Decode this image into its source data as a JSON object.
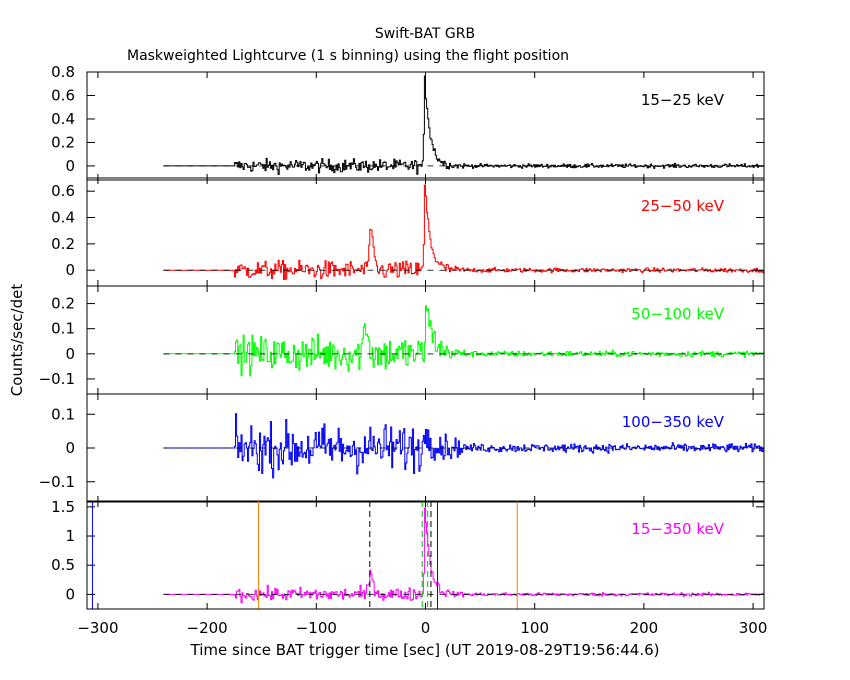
{
  "title": "Swift-BAT GRB",
  "subtitle": "Maskweighted Lightcurve (1 s binning) using the flight position",
  "xlabel": "Time since BAT trigger time [sec] (UT 2019-08-29T19:56:44.6)",
  "ylabel": "Counts/sec/det",
  "chart_data": {
    "type": "line",
    "title": "Swift-BAT GRB",
    "subtitle": "Maskweighted Lightcurve (1 s binning) using the flight position",
    "xlabel": "Time since BAT trigger time [sec] (UT 2019-08-29T19:56:44.6)",
    "ylabel": "Counts/sec/det",
    "xlim": [
      -310,
      310
    ],
    "xticks": [
      -300,
      -200,
      -100,
      0,
      100,
      200,
      300
    ],
    "xtick_labels": [
      "−300",
      "−200",
      "−100",
      "0",
      "100",
      "200",
      "300"
    ],
    "panels": [
      {
        "label": "15−25 keV",
        "color": "#000000",
        "ylim": [
          -0.12,
          0.8
        ],
        "yticks": [
          0,
          0.2,
          0.4,
          0.6,
          0.8
        ],
        "ytick_labels": [
          "0",
          "0.2",
          "0.4",
          "0.6",
          "0.8"
        ],
        "flat_start": -240,
        "data_start": -175,
        "noise_pre": 0.04,
        "noise_post": 0.012,
        "peak": 0.75,
        "peak_x": -1,
        "decay": 5,
        "bumps": []
      },
      {
        "label": "25−50 keV",
        "color": "#ff0000",
        "ylim": [
          -0.12,
          0.7
        ],
        "yticks": [
          0,
          0.2,
          0.4,
          0.6
        ],
        "ytick_labels": [
          "0",
          "0.2",
          "0.4",
          "0.6"
        ],
        "flat_start": -240,
        "data_start": -175,
        "noise_pre": 0.05,
        "noise_post": 0.012,
        "peak": 0.65,
        "peak_x": -1,
        "decay": 5,
        "bumps": [
          {
            "x": -50,
            "h": 0.25
          }
        ]
      },
      {
        "label": "50−100 keV",
        "color": "#00ff00",
        "ylim": [
          -0.16,
          0.27
        ],
        "yticks": [
          -0.1,
          0,
          0.1,
          0.2
        ],
        "ytick_labels": [
          "−0.1",
          "0",
          "0.1",
          "0.2"
        ],
        "flat_start": -240,
        "data_start": -175,
        "noise_pre": 0.05,
        "noise_post": 0.008,
        "peak": 0.2,
        "peak_x": 0,
        "decay": 6,
        "bumps": [
          {
            "x": -55,
            "h": 0.12
          }
        ]
      },
      {
        "label": "100−350 keV",
        "color": "#0000ff",
        "ylim": [
          -0.16,
          0.16
        ],
        "yticks": [
          -0.1,
          0,
          0.1
        ],
        "ytick_labels": [
          "−0.1",
          "0",
          "0.1"
        ],
        "flat_start": -240,
        "data_start": -175,
        "noise_pre": 0.05,
        "noise_post": 0.009,
        "peak": 0.06,
        "peak_x": 0,
        "decay": 6,
        "bumps": []
      },
      {
        "label": "15−350 keV",
        "color": "#ff00ff",
        "ylim": [
          -0.25,
          1.6
        ],
        "yticks": [
          0,
          0.5,
          1,
          1.5
        ],
        "ytick_labels": [
          "0",
          "0.5",
          "1",
          "1.5"
        ],
        "flat_start": -240,
        "data_start": -175,
        "noise_pre": 0.08,
        "noise_post": 0.02,
        "peak": 1.5,
        "peak_x": -1,
        "decay": 5,
        "bumps": [
          {
            "x": -50,
            "h": 0.35
          }
        ]
      }
    ],
    "markers": [
      {
        "x": -153,
        "color": "#ff8000",
        "style": "solid"
      },
      {
        "x": 84,
        "color": "#ff8000",
        "style": "solid"
      },
      {
        "x": -51,
        "color": "#000000",
        "style": "dashed"
      },
      {
        "x": 5,
        "color": "#000000",
        "style": "dashed"
      },
      {
        "x": -3,
        "color": "#00c000",
        "style": "dashed"
      },
      {
        "x": 2,
        "color": "#00c000",
        "style": "dashed"
      },
      {
        "x": -305,
        "color": "#0000ff",
        "style": "solid"
      },
      {
        "x": 11,
        "color": "#0000ff",
        "style": "solid"
      }
    ]
  }
}
